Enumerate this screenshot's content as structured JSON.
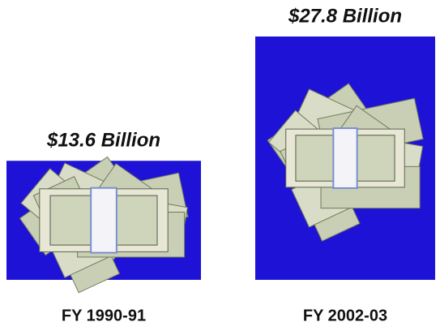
{
  "chart_data": {
    "type": "pictorial-bar",
    "categories": [
      "FY 1990-91",
      "FY 2002-03"
    ],
    "values": [
      13.6,
      27.8
    ],
    "value_labels": [
      "$13.6 Billion",
      "$27.8 Billion"
    ],
    "color": "#1e12d6"
  }
}
